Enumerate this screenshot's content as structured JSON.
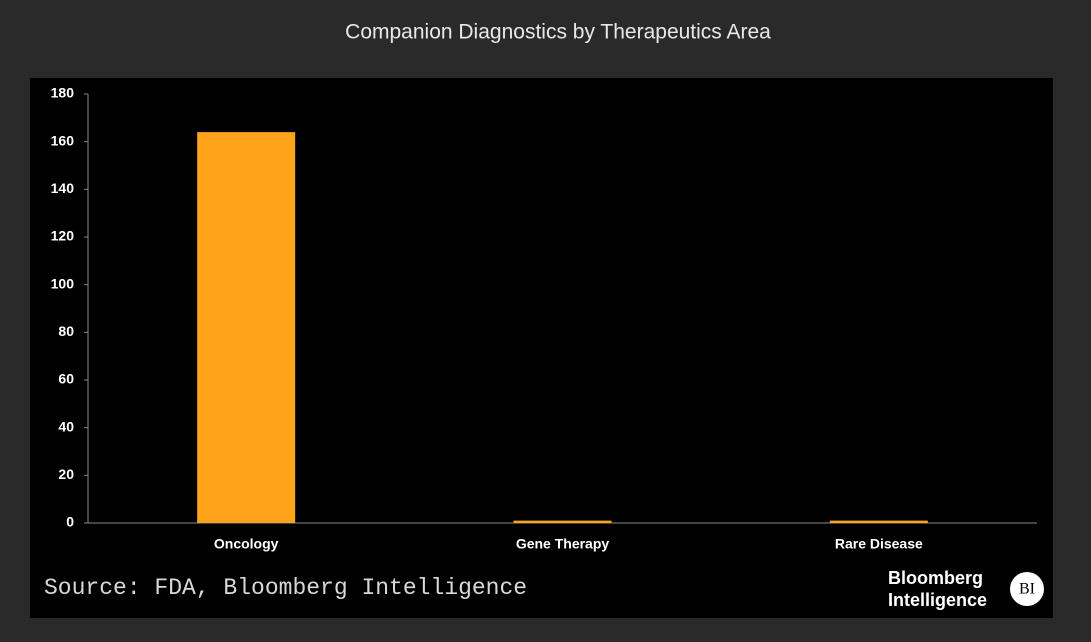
{
  "chart_data": {
    "type": "bar",
    "title": "Companion Diagnostics by Therapeutics Area",
    "categories": [
      "Oncology",
      "Gene Therapy",
      "Rare Disease"
    ],
    "values": [
      164,
      1,
      1
    ],
    "color": "#ffa31a",
    "ylim": [
      0,
      180
    ],
    "yticks": [
      0,
      20,
      40,
      60,
      80,
      100,
      120,
      140,
      160,
      180
    ],
    "grid": false
  },
  "footer": {
    "source": "Source: FDA, Bloomberg Intelligence",
    "logo": [
      "Bloomberg",
      "Intelligence"
    ],
    "badge": "BI"
  }
}
